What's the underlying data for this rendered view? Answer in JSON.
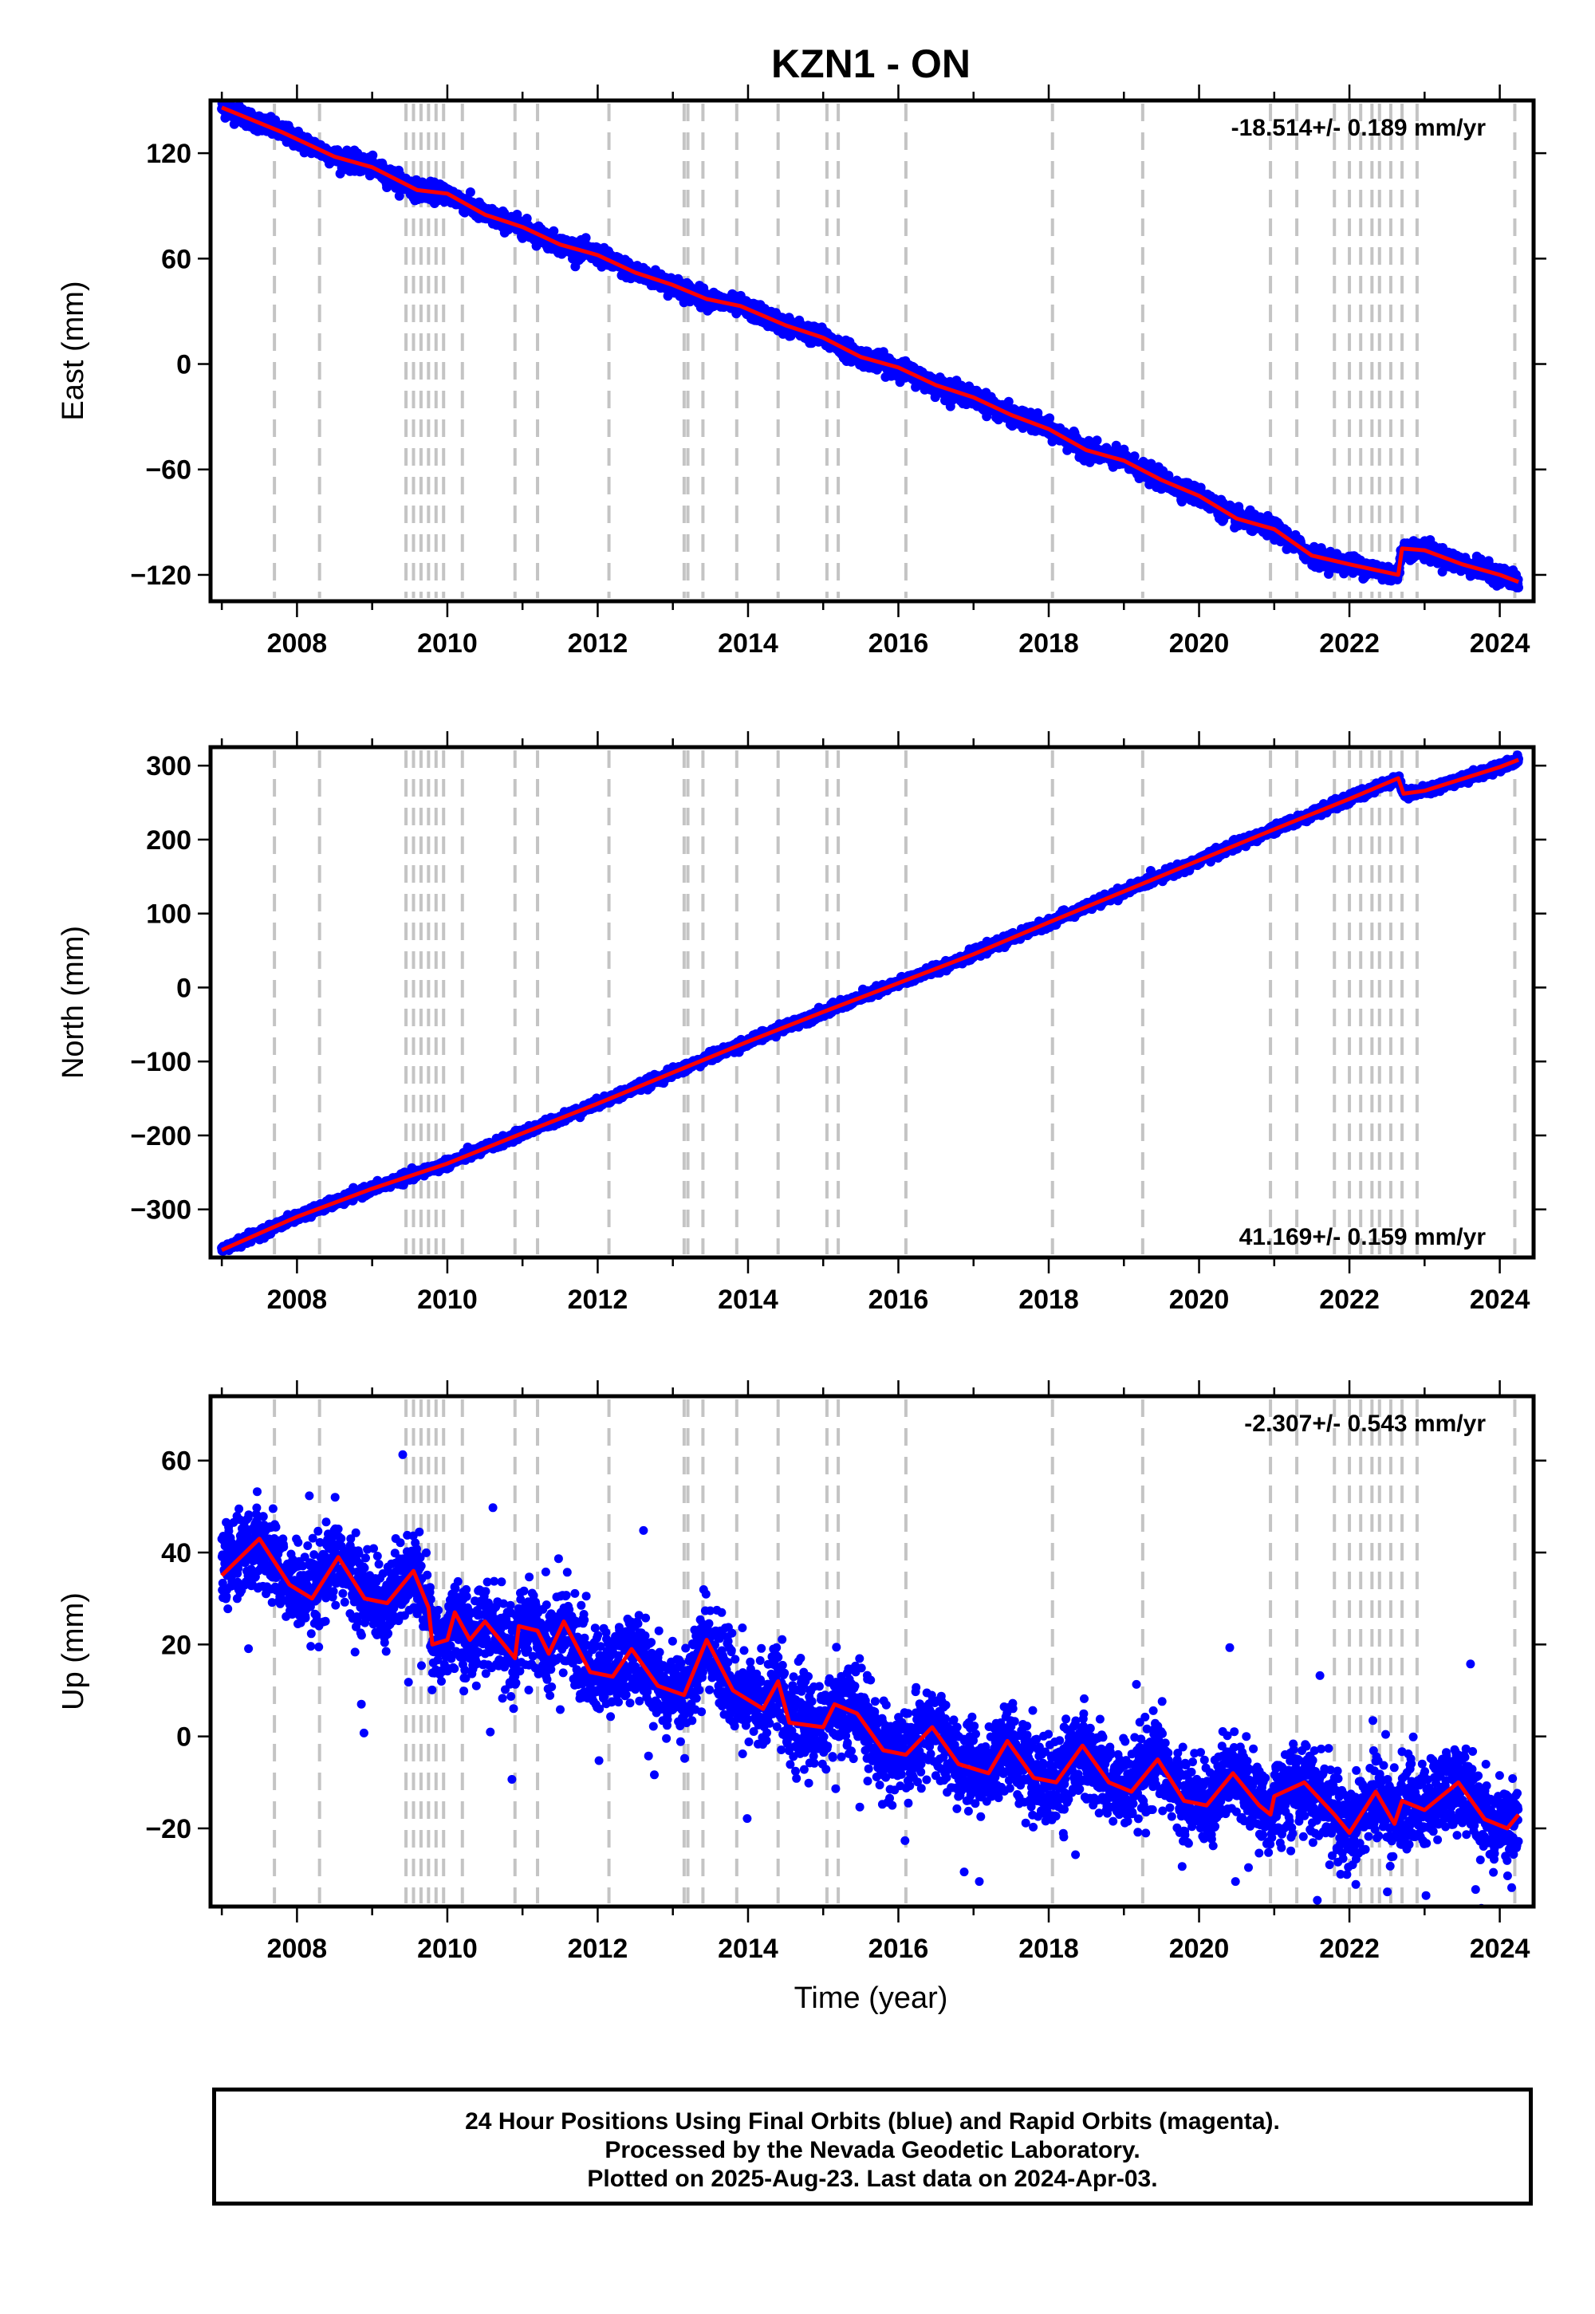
{
  "chart_data": {
    "type": "scatter",
    "title": "KZN1 - ON",
    "xlabel": "Time (year)",
    "x_range": [
      2006.85,
      2024.45
    ],
    "x_ticks": [
      2008,
      2010,
      2012,
      2014,
      2016,
      2018,
      2020,
      2022,
      2024
    ],
    "x_tick_labels": [
      "2008",
      "2010",
      "2012",
      "2014",
      "2016",
      "2018",
      "2020",
      "2022",
      "2024"
    ],
    "event_lines_years": [
      2007.7,
      2008.3,
      2009.45,
      2009.55,
      2009.65,
      2009.75,
      2009.85,
      2009.95,
      2010.2,
      2010.9,
      2011.2,
      2012.15,
      2013.15,
      2013.2,
      2013.4,
      2013.85,
      2014.4,
      2015.05,
      2015.2,
      2016.1,
      2018.05,
      2019.25,
      2020.95,
      2021.3,
      2021.8,
      2022.0,
      2022.15,
      2022.3,
      2022.4,
      2022.55,
      2022.7,
      2022.9,
      2024.2
    ],
    "series_colors": {
      "points": "#0000ff",
      "model": "#ff0000",
      "event_lines": "#c4c4c4"
    },
    "panels": [
      {
        "id": "east",
        "ylabel": "East (mm)",
        "ylim": [
          -135,
          150
        ],
        "y_ticks": [
          120,
          60,
          0,
          -60,
          -120
        ],
        "y_tick_labels": [
          "120",
          "60",
          "0",
          "−60",
          "−120"
        ],
        "rate_text": "-18.514+/- 0.189 mm/yr",
        "rate_position": "top-right",
        "noise_mm": 2.5,
        "trend_points": [
          [
            2007.0,
            146
          ],
          [
            2007.8,
            132
          ],
          [
            2008.5,
            118
          ],
          [
            2009.0,
            112
          ],
          [
            2009.6,
            99
          ],
          [
            2010.0,
            97
          ],
          [
            2010.5,
            85
          ],
          [
            2011.0,
            78
          ],
          [
            2011.5,
            68
          ],
          [
            2012.0,
            62
          ],
          [
            2012.5,
            52
          ],
          [
            2013.0,
            45
          ],
          [
            2013.45,
            37
          ],
          [
            2013.9,
            33
          ],
          [
            2014.5,
            22
          ],
          [
            2015.0,
            15
          ],
          [
            2015.5,
            4
          ],
          [
            2016.0,
            -2
          ],
          [
            2016.5,
            -12
          ],
          [
            2017.0,
            -19
          ],
          [
            2017.5,
            -29
          ],
          [
            2018.0,
            -37
          ],
          [
            2018.5,
            -49
          ],
          [
            2019.0,
            -55
          ],
          [
            2019.5,
            -66
          ],
          [
            2020.0,
            -75
          ],
          [
            2020.5,
            -88
          ],
          [
            2021.0,
            -94
          ],
          [
            2021.5,
            -109
          ],
          [
            2022.0,
            -114
          ],
          [
            2022.65,
            -120
          ],
          [
            2022.7,
            -105
          ],
          [
            2023.0,
            -106
          ],
          [
            2023.5,
            -114
          ],
          [
            2024.0,
            -120
          ],
          [
            2024.25,
            -124
          ]
        ]
      },
      {
        "id": "north",
        "ylabel": "North (mm)",
        "ylim": [
          -365,
          325
        ],
        "y_ticks": [
          300,
          200,
          100,
          0,
          -100,
          -200,
          -300
        ],
        "y_tick_labels": [
          "300",
          "200",
          "100",
          "0",
          "−100",
          "−200",
          "−300"
        ],
        "rate_text": "41.169+/- 0.159 mm/yr",
        "rate_position": "bottom-right",
        "noise_mm": 3,
        "trend_points": [
          [
            2007.0,
            -355
          ],
          [
            2008.0,
            -310
          ],
          [
            2009.0,
            -272
          ],
          [
            2010.0,
            -238
          ],
          [
            2011.0,
            -197
          ],
          [
            2012.0,
            -157
          ],
          [
            2013.0,
            -115
          ],
          [
            2014.0,
            -73
          ],
          [
            2015.0,
            -33
          ],
          [
            2016.0,
            6
          ],
          [
            2017.0,
            45
          ],
          [
            2018.0,
            88
          ],
          [
            2019.0,
            130
          ],
          [
            2020.0,
            172
          ],
          [
            2021.0,
            214
          ],
          [
            2022.0,
            255
          ],
          [
            2022.65,
            283
          ],
          [
            2022.72,
            262
          ],
          [
            2023.0,
            266
          ],
          [
            2024.0,
            298
          ],
          [
            2024.25,
            308
          ]
        ]
      },
      {
        "id": "up",
        "ylabel": "Up (mm)",
        "ylim": [
          -37,
          74
        ],
        "y_ticks": [
          60,
          40,
          20,
          0,
          -20
        ],
        "y_tick_labels": [
          "60",
          "40",
          "20",
          "0",
          "−20"
        ],
        "rate_text": "-2.307+/- 0.543 mm/yr",
        "rate_position": "top-right",
        "noise_mm": 4.5,
        "trend_points": [
          [
            2007.0,
            35
          ],
          [
            2007.5,
            43
          ],
          [
            2007.9,
            33
          ],
          [
            2008.2,
            30
          ],
          [
            2008.55,
            39
          ],
          [
            2008.9,
            30
          ],
          [
            2009.2,
            29
          ],
          [
            2009.55,
            36
          ],
          [
            2009.75,
            28
          ],
          [
            2009.8,
            20
          ],
          [
            2010.0,
            21
          ],
          [
            2010.1,
            27
          ],
          [
            2010.3,
            21
          ],
          [
            2010.5,
            25
          ],
          [
            2010.9,
            17
          ],
          [
            2010.95,
            24
          ],
          [
            2011.2,
            23
          ],
          [
            2011.35,
            18
          ],
          [
            2011.55,
            25
          ],
          [
            2011.9,
            14
          ],
          [
            2012.2,
            13
          ],
          [
            2012.45,
            19
          ],
          [
            2012.8,
            11
          ],
          [
            2013.15,
            9
          ],
          [
            2013.45,
            21
          ],
          [
            2013.8,
            10
          ],
          [
            2014.2,
            6
          ],
          [
            2014.4,
            12
          ],
          [
            2014.55,
            3
          ],
          [
            2015.0,
            2
          ],
          [
            2015.15,
            7
          ],
          [
            2015.45,
            5
          ],
          [
            2015.8,
            -3
          ],
          [
            2016.1,
            -4
          ],
          [
            2016.45,
            2
          ],
          [
            2016.8,
            -6
          ],
          [
            2017.2,
            -8
          ],
          [
            2017.45,
            -1
          ],
          [
            2017.8,
            -9
          ],
          [
            2018.1,
            -10
          ],
          [
            2018.45,
            -2
          ],
          [
            2018.8,
            -10
          ],
          [
            2019.1,
            -12
          ],
          [
            2019.45,
            -5
          ],
          [
            2019.8,
            -14
          ],
          [
            2020.1,
            -15
          ],
          [
            2020.45,
            -8
          ],
          [
            2020.8,
            -15
          ],
          [
            2020.95,
            -17
          ],
          [
            2021.0,
            -13
          ],
          [
            2021.4,
            -10
          ],
          [
            2021.8,
            -17
          ],
          [
            2022.0,
            -21
          ],
          [
            2022.35,
            -12
          ],
          [
            2022.6,
            -19
          ],
          [
            2022.7,
            -14
          ],
          [
            2023.0,
            -16
          ],
          [
            2023.45,
            -10
          ],
          [
            2023.8,
            -18
          ],
          [
            2024.1,
            -20
          ],
          [
            2024.25,
            -17
          ]
        ]
      }
    ]
  },
  "footer": {
    "line1": "24 Hour Positions Using Final Orbits (blue) and Rapid Orbits (magenta).",
    "line2": "Processed by the Nevada Geodetic Laboratory.",
    "line3": "Plotted on 2025-Aug-23. Last data on 2024-Apr-03."
  }
}
